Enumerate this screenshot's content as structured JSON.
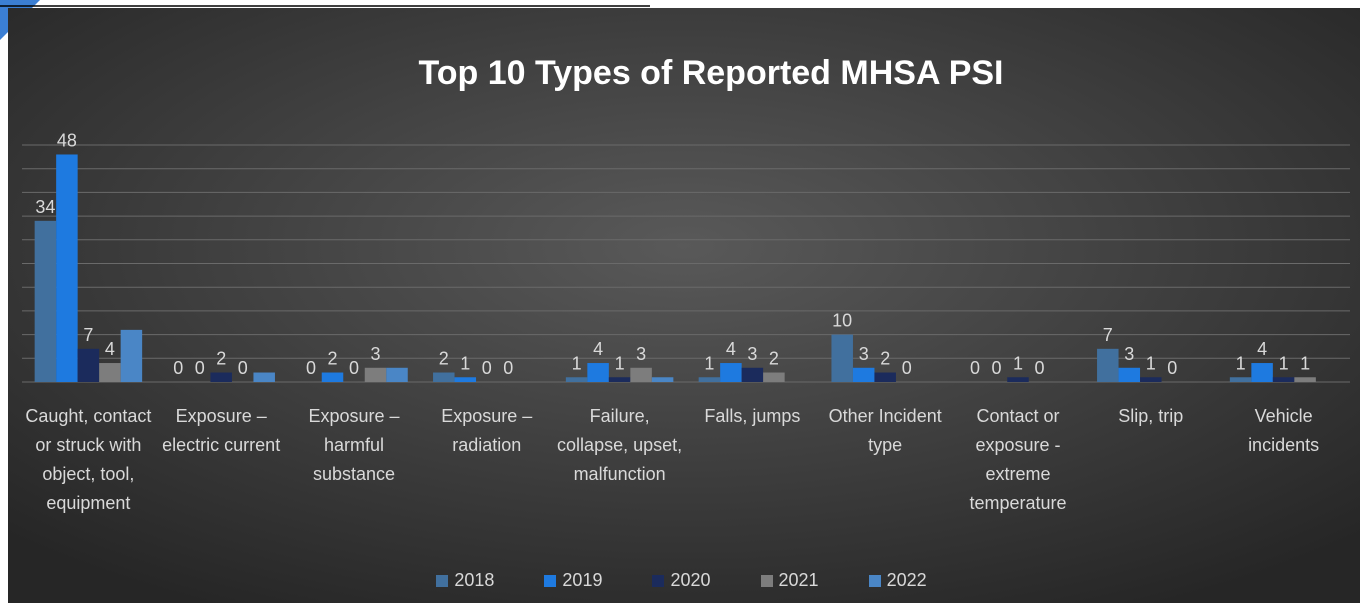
{
  "chart_data": {
    "type": "bar",
    "title": "Top 10 Types of Reported MHSA PSI",
    "categories": [
      "Caught, contact or struck with object, tool, equipment",
      "Exposure – electric current",
      "Exposure – harmful substance",
      "Exposure – radiation",
      "Failure, collapse, upset, malfunction",
      "Falls, jumps",
      "Other Incident type",
      "Contact or exposure - extreme temperature",
      "Slip, trip",
      "Vehicle incidents"
    ],
    "series": [
      {
        "name": "2018",
        "color": "#41709e",
        "data_labels": true,
        "values": [
          34,
          0,
          0,
          2,
          1,
          1,
          10,
          0,
          7,
          1
        ]
      },
      {
        "name": "2019",
        "color": "#1e7ae0",
        "data_labels": true,
        "values": [
          48,
          0,
          2,
          1,
          4,
          4,
          3,
          0,
          3,
          4
        ]
      },
      {
        "name": "2020",
        "color": "#1b2b5c",
        "data_labels": true,
        "values": [
          7,
          2,
          0,
          0,
          1,
          3,
          2,
          1,
          1,
          1
        ]
      },
      {
        "name": "2021",
        "color": "#7d7d7d",
        "data_labels": true,
        "values": [
          4,
          0,
          3,
          0,
          3,
          2,
          0,
          0,
          0,
          1
        ]
      },
      {
        "name": "2022",
        "color": "#4a86c6",
        "data_labels": false,
        "values": [
          11,
          2,
          3,
          0,
          1,
          0,
          0,
          0,
          0,
          0
        ]
      }
    ],
    "ylim": [
      0,
      50
    ],
    "yticks": [
      0,
      5,
      10,
      15,
      20,
      25,
      30,
      35,
      40,
      45,
      50
    ],
    "grid": true
  }
}
